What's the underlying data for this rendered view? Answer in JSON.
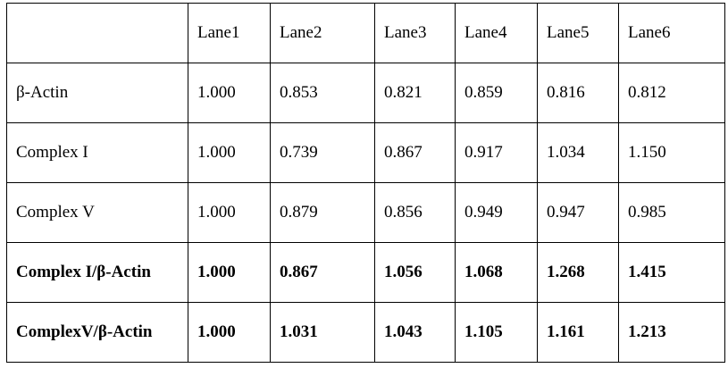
{
  "table": {
    "headers": [
      "",
      "Lane1",
      "Lane2",
      "Lane3",
      "Lane4",
      "Lane5",
      "Lane6"
    ],
    "rows": [
      {
        "label": "β-Actin",
        "values": [
          "1.000",
          "0.853",
          "0.821",
          "0.859",
          "0.816",
          "0.812"
        ],
        "bold": false
      },
      {
        "label": "Complex I",
        "values": [
          "1.000",
          "0.739",
          "0.867",
          "0.917",
          "1.034",
          "1.150"
        ],
        "bold": false
      },
      {
        "label": "Complex V",
        "values": [
          "1.000",
          "0.879",
          "0.856",
          "0.949",
          "0.947",
          "0.985"
        ],
        "bold": false
      },
      {
        "label": "Complex I/β-Actin",
        "values": [
          "1.000",
          "0.867",
          "1.056",
          "1.068",
          "1.268",
          "1.415"
        ],
        "bold": true
      },
      {
        "label": "ComplexV/β-Actin",
        "values": [
          "1.000",
          "1.031",
          "1.043",
          "1.105",
          "1.161",
          "1.213"
        ],
        "bold": true
      }
    ]
  }
}
